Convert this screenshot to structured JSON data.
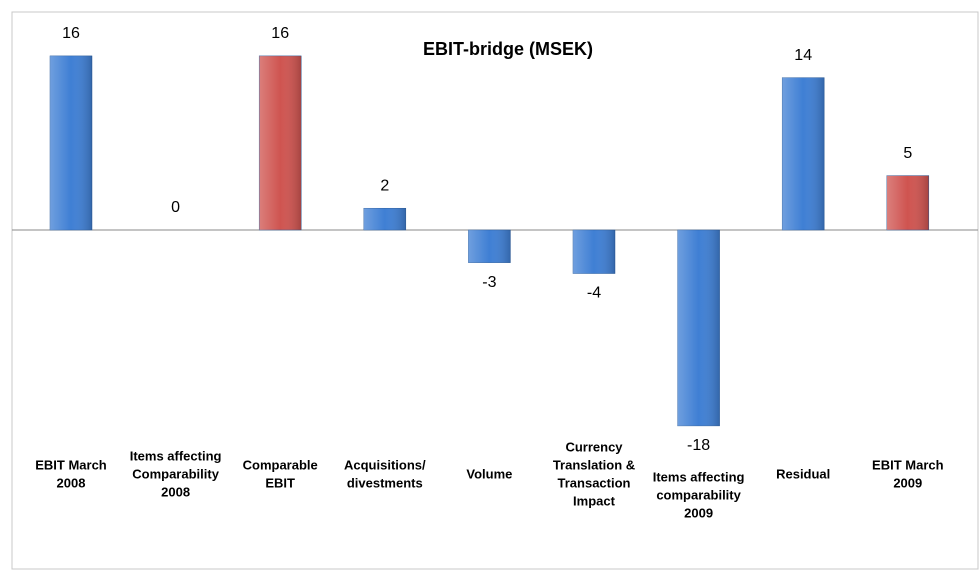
{
  "chart_data": {
    "type": "bar",
    "title": "EBIT-bridge (MSEK)",
    "categories": [
      [
        "EBIT March",
        "2008"
      ],
      [
        "Items affecting",
        "Comparability",
        "2008"
      ],
      [
        "Comparable",
        "EBIT"
      ],
      [
        "Acquisitions/",
        "divestments"
      ],
      [
        "Volume"
      ],
      [
        "Currency",
        "Translation &",
        "Transaction",
        "Impact"
      ],
      [
        "Items affecting",
        "comparability",
        "2009"
      ],
      [
        "Residual"
      ],
      [
        "EBIT March",
        "2009"
      ]
    ],
    "values": [
      16,
      0,
      16,
      2,
      -3,
      -4,
      -18,
      14,
      5
    ],
    "colors": [
      "#3f7fd4",
      "#3f7fd4",
      "#cf5450",
      "#3f7fd4",
      "#3f7fd4",
      "#3f7fd4",
      "#3f7fd4",
      "#3f7fd4",
      "#cf5450"
    ]
  }
}
